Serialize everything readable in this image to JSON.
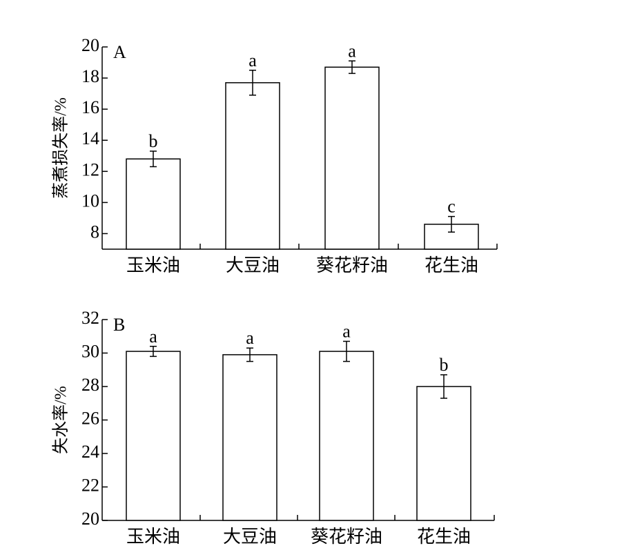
{
  "chart_data": [
    {
      "type": "bar",
      "panel_label": "A",
      "ylabel": "蒸煮损失率/%",
      "categories": [
        "玉米油",
        "大豆油",
        "葵花籽油",
        "花生油"
      ],
      "values": [
        12.8,
        17.7,
        18.7,
        8.6
      ],
      "errors": [
        0.5,
        0.8,
        0.4,
        0.5
      ],
      "letters": [
        "b",
        "a",
        "a",
        "c"
      ],
      "color": "#ffffff",
      "ylim": [
        7,
        20
      ],
      "yticks": [
        8,
        10,
        12,
        14,
        16,
        18,
        20
      ]
    },
    {
      "type": "bar",
      "panel_label": "B",
      "ylabel": "失水率/%",
      "categories": [
        "玉米油",
        "大豆油",
        "葵花籽油",
        "花生油"
      ],
      "values": [
        30.1,
        29.9,
        30.1,
        28.0
      ],
      "errors": [
        0.3,
        0.4,
        0.6,
        0.7
      ],
      "letters": [
        "a",
        "a",
        "a",
        "b"
      ],
      "color": "#ffffff",
      "ylim": [
        20,
        32
      ],
      "yticks": [
        20,
        22,
        24,
        26,
        28,
        30,
        32
      ]
    }
  ]
}
